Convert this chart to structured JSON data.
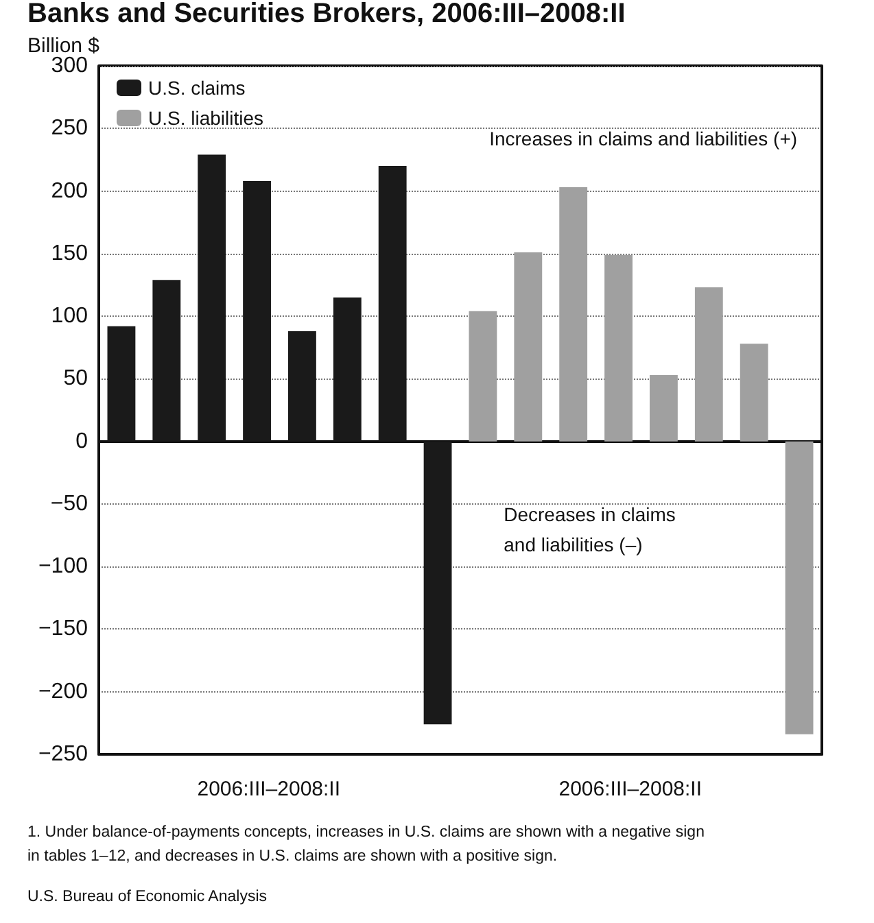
{
  "chart_data": {
    "type": "bar",
    "title": "Banks and Securities Brokers, 2006:III–2008:II",
    "ylabel": "Billion $",
    "categories": [
      null,
      null,
      null,
      null,
      null,
      null,
      null,
      null,
      null,
      null,
      null,
      null,
      null,
      null,
      null,
      null
    ],
    "series": [
      {
        "name": "U.S. claims",
        "color": "#1a1a1a",
        "values": [
          92,
          129,
          229,
          208,
          88,
          115,
          220,
          -226,
          null,
          null,
          null,
          null,
          null,
          null,
          null,
          null
        ]
      },
      {
        "name": "U.S. liabilities",
        "color": "#a0a0a0",
        "values": [
          null,
          null,
          null,
          null,
          null,
          null,
          null,
          null,
          104,
          151,
          203,
          149,
          53,
          123,
          78,
          -234
        ]
      }
    ],
    "ylim": [
      -250,
      300
    ],
    "yticks": [
      -250,
      -200,
      -150,
      -100,
      -50,
      0,
      50,
      100,
      150,
      200,
      250,
      300
    ],
    "grid": "y",
    "legend": "top left",
    "annotations": [
      "Increases in claims and liabilities (+)",
      "Decreases in claims\nand liabilities (–)",
      "2006:III–2008:II",
      "2006:III–2008:II",
      "1. Under balance-of-payments concepts, increases in U.S. claims are shown with a negative sign\nin tables 1–12, and decreases in U.S. claims are shown with a positive sign.",
      "U.S. Bureau of Economic Analysis"
    ]
  }
}
